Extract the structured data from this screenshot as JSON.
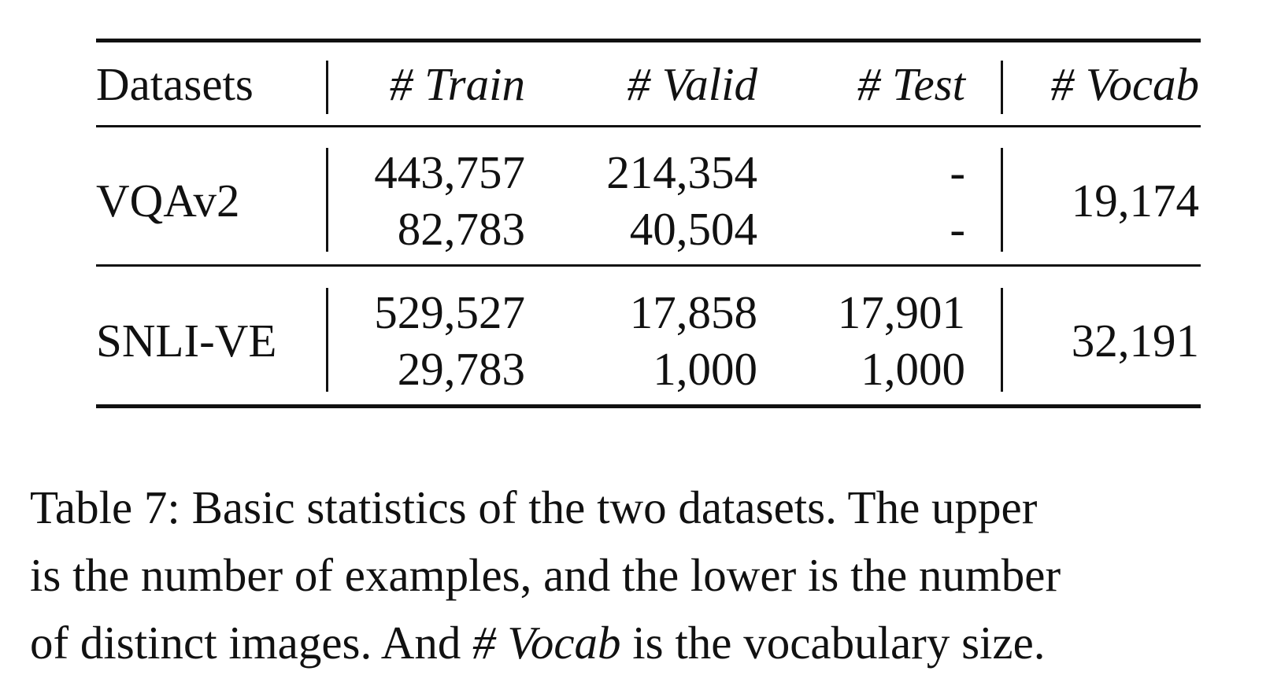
{
  "table": {
    "header": {
      "datasets": "Datasets",
      "train": "# Train",
      "valid": "# Valid",
      "test": "# Test",
      "vocab": "# Vocab"
    },
    "rows": [
      {
        "name": "VQAv2",
        "train": [
          "443,757",
          "82,783"
        ],
        "valid": [
          "214,354",
          "40,504"
        ],
        "test": [
          "-",
          "-"
        ],
        "vocab": "19,174"
      },
      {
        "name": "SNLI-VE",
        "train": [
          "529,527",
          "29,783"
        ],
        "valid": [
          "17,858",
          "1,000"
        ],
        "test": [
          "17,901",
          "1,000"
        ],
        "vocab": "32,191"
      }
    ]
  },
  "caption": {
    "line1": "Table 7: Basic statistics of the two datasets. The upper",
    "line2": "is the number of examples, and the lower is the number",
    "line3_pre": "of distinct images. And ",
    "line3_em": "# Vocab",
    "line3_post": " is the vocabulary size."
  }
}
